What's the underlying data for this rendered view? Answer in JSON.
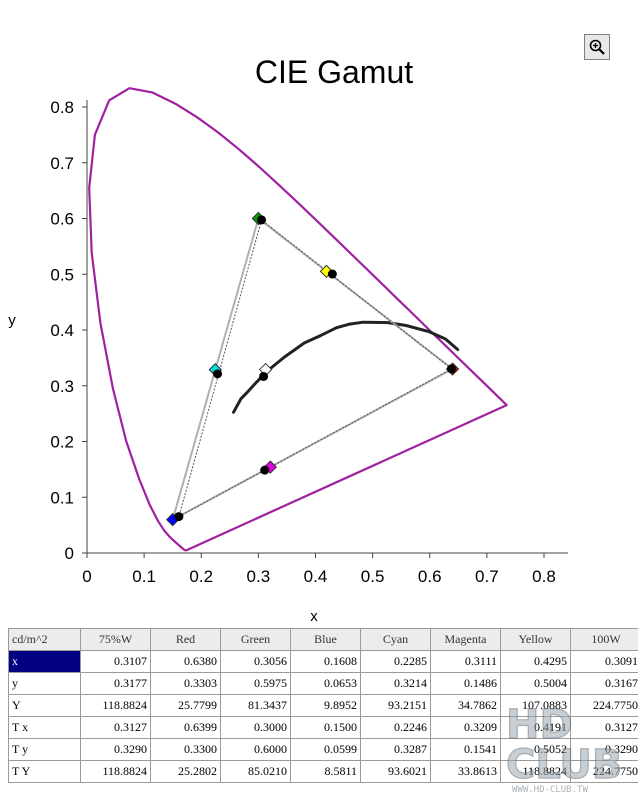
{
  "chart_data": {
    "type": "scatter",
    "title": "CIE Gamut",
    "xlabel": "x",
    "ylabel": "y",
    "xlim": [
      0,
      0.8
    ],
    "ylim": [
      0,
      0.8
    ],
    "x_ticks": [
      "0",
      "0.1",
      "0.2",
      "0.3",
      "0.4",
      "0.5",
      "0.6",
      "0.7",
      "0.8"
    ],
    "y_ticks": [
      "0",
      "0.1",
      "0.2",
      "0.3",
      "0.4",
      "0.5",
      "0.6",
      "0.7",
      "0.8"
    ],
    "grid": false,
    "spectral_locus": [
      [
        0.1741,
        0.005
      ],
      [
        0.1738,
        0.0049
      ],
      [
        0.1736,
        0.0049
      ],
      [
        0.1733,
        0.0048
      ],
      [
        0.173,
        0.0048
      ],
      [
        0.1726,
        0.0048
      ],
      [
        0.1721,
        0.0048
      ],
      [
        0.1714,
        0.0051
      ],
      [
        0.1703,
        0.0058
      ],
      [
        0.1689,
        0.0069
      ],
      [
        0.1669,
        0.0086
      ],
      [
        0.1644,
        0.0109
      ],
      [
        0.1611,
        0.0138
      ],
      [
        0.1566,
        0.0177
      ],
      [
        0.151,
        0.0227
      ],
      [
        0.144,
        0.0297
      ],
      [
        0.1355,
        0.0399
      ],
      [
        0.1241,
        0.0578
      ],
      [
        0.1096,
        0.0868
      ],
      [
        0.0913,
        0.1327
      ],
      [
        0.0687,
        0.2007
      ],
      [
        0.0454,
        0.295
      ],
      [
        0.0235,
        0.4127
      ],
      [
        0.0082,
        0.5384
      ],
      [
        0.0039,
        0.6548
      ],
      [
        0.0139,
        0.7502
      ],
      [
        0.0389,
        0.812
      ],
      [
        0.0743,
        0.8338
      ],
      [
        0.1142,
        0.8262
      ],
      [
        0.1547,
        0.8059
      ],
      [
        0.1929,
        0.7816
      ],
      [
        0.2296,
        0.7543
      ],
      [
        0.2658,
        0.7243
      ],
      [
        0.3016,
        0.6923
      ],
      [
        0.3373,
        0.6589
      ],
      [
        0.3731,
        0.6245
      ],
      [
        0.4087,
        0.5896
      ],
      [
        0.4441,
        0.5547
      ],
      [
        0.4788,
        0.5202
      ],
      [
        0.5125,
        0.4866
      ],
      [
        0.5448,
        0.4544
      ],
      [
        0.5752,
        0.4242
      ],
      [
        0.6029,
        0.3965
      ],
      [
        0.627,
        0.3725
      ],
      [
        0.6482,
        0.3514
      ],
      [
        0.6658,
        0.334
      ],
      [
        0.6801,
        0.3197
      ],
      [
        0.6915,
        0.3083
      ],
      [
        0.7006,
        0.2993
      ],
      [
        0.7079,
        0.292
      ],
      [
        0.714,
        0.2859
      ],
      [
        0.719,
        0.2809
      ],
      [
        0.723,
        0.277
      ],
      [
        0.726,
        0.274
      ],
      [
        0.7283,
        0.2717
      ],
      [
        0.73,
        0.27
      ],
      [
        0.7311,
        0.2689
      ],
      [
        0.732,
        0.268
      ],
      [
        0.7327,
        0.2673
      ],
      [
        0.7334,
        0.2666
      ],
      [
        0.734,
        0.266
      ],
      [
        0.7344,
        0.2656
      ],
      [
        0.7346,
        0.2654
      ],
      [
        0.7347,
        0.2653
      ]
    ],
    "planckian_locus": [
      [
        0.2565,
        0.2523
      ],
      [
        0.2634,
        0.2654
      ],
      [
        0.2697,
        0.277
      ],
      [
        0.2806,
        0.2883
      ],
      [
        0.2952,
        0.3048
      ],
      [
        0.3135,
        0.3236
      ],
      [
        0.3221,
        0.3318
      ],
      [
        0.3457,
        0.3516
      ],
      [
        0.3805,
        0.3768
      ],
      [
        0.4101,
        0.3907
      ],
      [
        0.4369,
        0.4041
      ],
      [
        0.4599,
        0.4106
      ],
      [
        0.4832,
        0.414
      ],
      [
        0.5267,
        0.4133
      ],
      [
        0.5586,
        0.408
      ],
      [
        0.599,
        0.3969
      ],
      [
        0.6275,
        0.3839
      ],
      [
        0.649,
        0.365
      ]
    ],
    "target_points": [
      {
        "name": "100W",
        "x": 0.3127,
        "y": 0.329,
        "color": "#ffffff"
      },
      {
        "name": "Red",
        "x": 0.6399,
        "y": 0.33,
        "color": "#e00000"
      },
      {
        "name": "Green",
        "x": 0.3,
        "y": 0.6,
        "color": "#00a000"
      },
      {
        "name": "Blue",
        "x": 0.15,
        "y": 0.0599,
        "color": "#0000ff"
      },
      {
        "name": "Cyan",
        "x": 0.2246,
        "y": 0.3287,
        "color": "#00e0e0"
      },
      {
        "name": "Magenta",
        "x": 0.3209,
        "y": 0.1541,
        "color": "#e000e0"
      },
      {
        "name": "Yellow",
        "x": 0.4191,
        "y": 0.5052,
        "color": "#ffff00"
      }
    ],
    "measured_points": [
      {
        "name": "100W",
        "x": 0.3091,
        "y": 0.3167
      },
      {
        "name": "Red",
        "x": 0.638,
        "y": 0.3303
      },
      {
        "name": "Green",
        "x": 0.3056,
        "y": 0.5975
      },
      {
        "name": "Blue",
        "x": 0.1608,
        "y": 0.0653
      },
      {
        "name": "Cyan",
        "x": 0.2285,
        "y": 0.3214
      },
      {
        "name": "Magenta",
        "x": 0.3111,
        "y": 0.1486
      },
      {
        "name": "Yellow",
        "x": 0.4295,
        "y": 0.5004
      }
    ],
    "colors": {
      "locus": "#a020a0",
      "measured_triangle": "#555555",
      "target_triangle": "#b0b0b0",
      "planckian": "#222222",
      "measured_dot": "#000000"
    }
  },
  "table": {
    "corner": "cd/m^2",
    "columns": [
      "75%W",
      "Red",
      "Green",
      "Blue",
      "Cyan",
      "Magenta",
      "Yellow",
      "100W"
    ],
    "rows": [
      {
        "label": "x",
        "values": [
          "0.3107",
          "0.6380",
          "0.3056",
          "0.1608",
          "0.2285",
          "0.3111",
          "0.4295",
          "0.3091"
        ]
      },
      {
        "label": "y",
        "values": [
          "0.3177",
          "0.3303",
          "0.5975",
          "0.0653",
          "0.3214",
          "0.1486",
          "0.5004",
          "0.3167"
        ]
      },
      {
        "label": "Y",
        "values": [
          "118.8824",
          "25.7799",
          "81.3437",
          "9.8952",
          "93.2151",
          "34.7862",
          "107.0883",
          "224.7750"
        ]
      },
      {
        "label": "T x",
        "values": [
          "0.3127",
          "0.6399",
          "0.3000",
          "0.1500",
          "0.2246",
          "0.3209",
          "0.4191",
          "0.3127"
        ]
      },
      {
        "label": "T y",
        "values": [
          "0.3290",
          "0.3300",
          "0.6000",
          "0.0599",
          "0.3287",
          "0.1541",
          "0.5052",
          "0.3290"
        ]
      },
      {
        "label": "T Y",
        "values": [
          "118.8824",
          "25.2802",
          "85.0210",
          "8.5811",
          "93.6021",
          "33.8613",
          "118.8824",
          "224.7750"
        ]
      }
    ]
  },
  "zoom_icon": "zoom-in-icon",
  "watermark": {
    "main": "HD",
    "sub": "CLUB",
    "url": "WWW.HD-CLUB.TW"
  }
}
